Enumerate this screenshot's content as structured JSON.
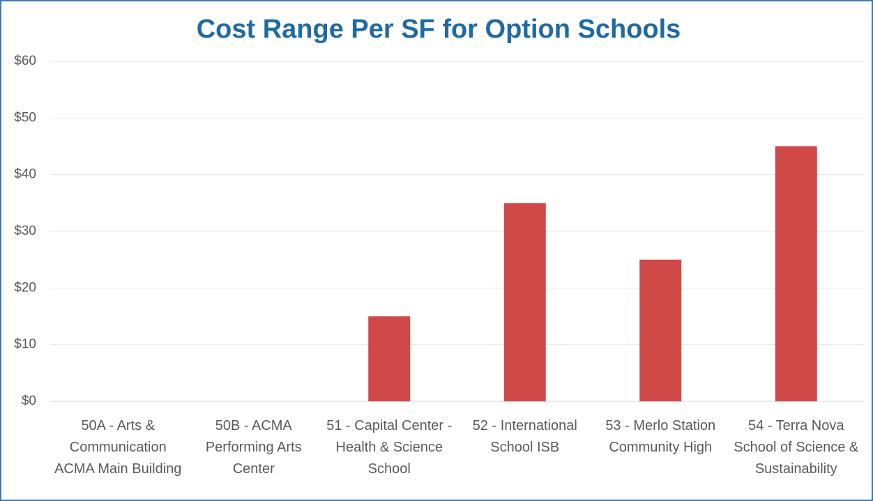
{
  "chart_data": {
    "type": "bar",
    "title": "Cost Range Per SF for Option Schools",
    "categories": [
      "50A - Arts & Communication ACMA Main Building",
      "50B - ACMA Performing Arts Center",
      "51 - Capital Center - Health & Science School",
      "52 - International School ISB",
      "53 - Merlo Station Community High",
      "54 - Terra Nova School of Science & Sustainability"
    ],
    "values": [
      0,
      0,
      15,
      35,
      25,
      45
    ],
    "color": "#d04848",
    "ylim": [
      0,
      60
    ],
    "yticks": [
      {
        "value": 0,
        "label": "$0"
      },
      {
        "value": 10,
        "label": "$10"
      },
      {
        "value": 20,
        "label": "$20"
      },
      {
        "value": 30,
        "label": "$30"
      },
      {
        "value": 40,
        "label": "$40"
      },
      {
        "value": 50,
        "label": "$50"
      },
      {
        "value": 60,
        "label": "$60"
      }
    ],
    "grid": true
  }
}
